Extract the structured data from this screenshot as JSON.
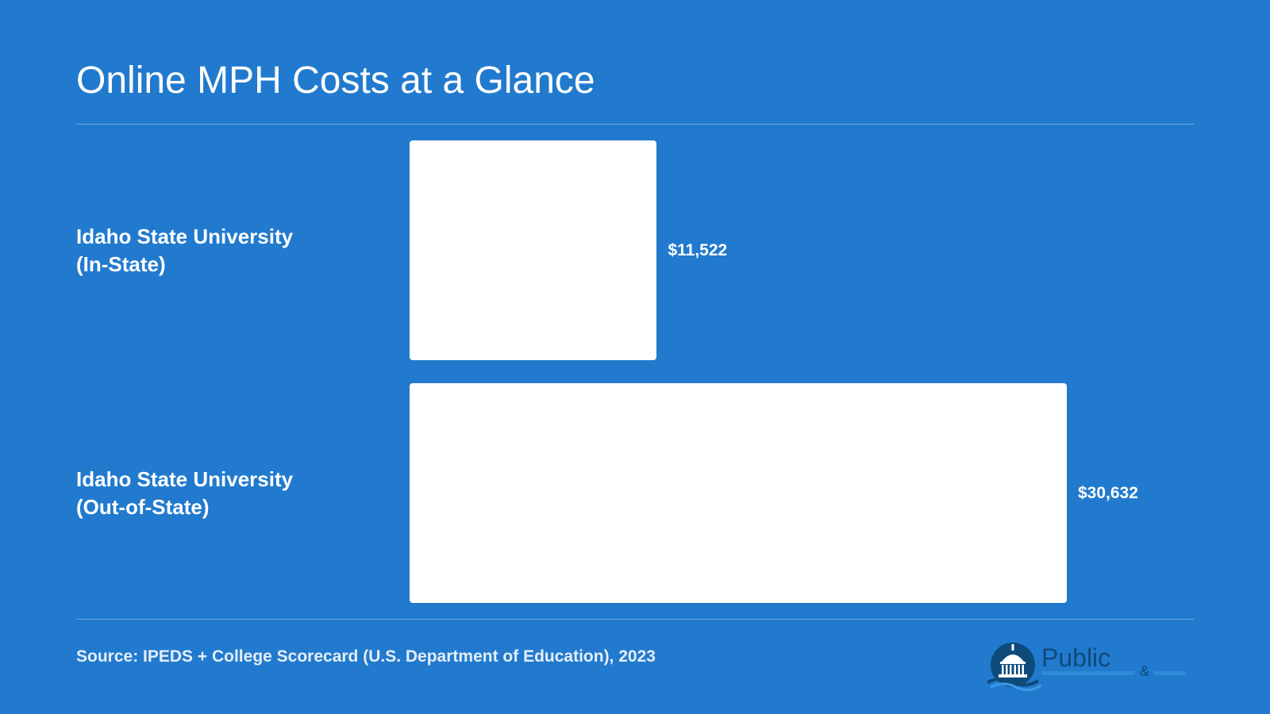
{
  "title": "Online MPH Costs at a Glance",
  "source": "Source: IPEDS + College Scorecard (U.S. Department of Education), 2023",
  "colors": {
    "background": "#217ACE",
    "bar": "#FFFFFF",
    "text": "#FFFFFF",
    "logo_dark": "#0E4A7A"
  },
  "logo": {
    "icon": "capitol-dome-icon",
    "word": "Public",
    "amp": "&"
  },
  "chart_data": {
    "type": "bar",
    "orientation": "horizontal",
    "title": "Online MPH Costs at a Glance",
    "categories": [
      [
        "Idaho State University",
        "(In-State)"
      ],
      [
        "Idaho State University",
        "(Out-of-State)"
      ]
    ],
    "values": [
      11522,
      30632
    ],
    "value_labels": [
      "$11,522",
      "$30,632"
    ],
    "xlim": [
      0,
      30632
    ],
    "grid": false,
    "legend": "none"
  }
}
